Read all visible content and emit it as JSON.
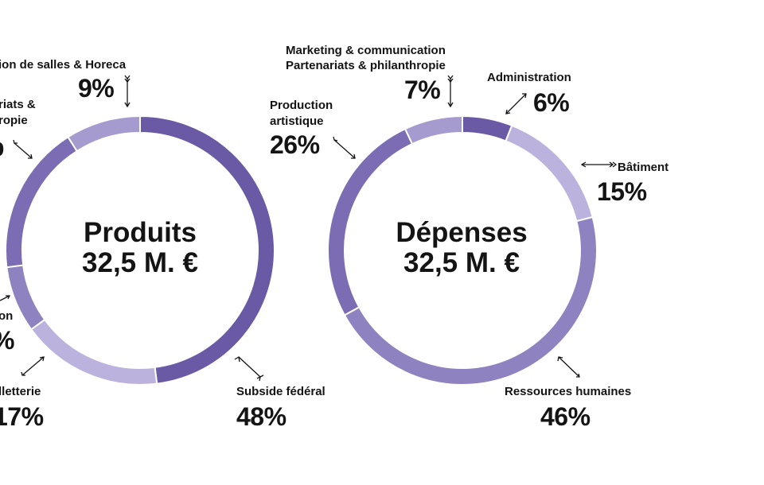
{
  "colors": {
    "dark": "#6a5aa6",
    "medium": "#7b6cb3",
    "mid_light": "#8f82c0",
    "light": "#a69bce",
    "lightest": "#bbb3dd",
    "text": "#141414"
  },
  "chart_data": [
    {
      "type": "pie",
      "variant": "donut",
      "title": "Produits",
      "subtitle": "32,5 M. €",
      "slices": [
        {
          "label_lines": [
            "Subside fédéral"
          ],
          "pct_label": "48%",
          "value": 48,
          "color": "#6a5aa6"
        },
        {
          "label_lines": [
            "lletterie"
          ],
          "pct_label": "17%",
          "value": 17,
          "color": "#bbb3dd"
        },
        {
          "label_lines": [
            "on"
          ],
          "pct_label": "%",
          "value": 8,
          "color": "#8f82c0"
        },
        {
          "label_lines": [
            "riats &",
            "ropie"
          ],
          "pct_label": "",
          "value": 18,
          "color": "#7b6cb3"
        },
        {
          "label_lines": [
            "ion de salles & Horeca"
          ],
          "pct_label": "9%",
          "value": 9,
          "color": "#a69bce"
        }
      ]
    },
    {
      "type": "pie",
      "variant": "donut",
      "title": "Dépenses",
      "subtitle": "32,5 M. €",
      "slices": [
        {
          "label_lines": [
            "Administration"
          ],
          "pct_label": "6%",
          "value": 6,
          "color": "#6a5aa6"
        },
        {
          "label_lines": [
            "Bâtiment"
          ],
          "pct_label": "15%",
          "value": 15,
          "color": "#bbb3dd"
        },
        {
          "label_lines": [
            "Ressources humaines"
          ],
          "pct_label": "46%",
          "value": 46,
          "color": "#8f82c0"
        },
        {
          "label_lines": [
            "Production",
            "artistique"
          ],
          "pct_label": "26%",
          "value": 26,
          "color": "#7b6cb3"
        },
        {
          "label_lines": [
            "Marketing & communication",
            "Partenariats & philanthropie"
          ],
          "pct_label": "7%",
          "value": 7,
          "color": "#a69bce"
        }
      ]
    }
  ]
}
